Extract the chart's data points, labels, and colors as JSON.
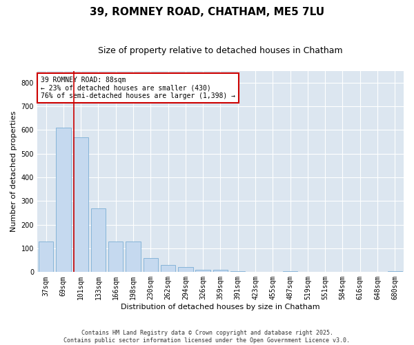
{
  "title": "39, ROMNEY ROAD, CHATHAM, ME5 7LU",
  "subtitle": "Size of property relative to detached houses in Chatham",
  "xlabel": "Distribution of detached houses by size in Chatham",
  "ylabel": "Number of detached properties",
  "categories": [
    "37sqm",
    "69sqm",
    "101sqm",
    "133sqm",
    "166sqm",
    "198sqm",
    "230sqm",
    "262sqm",
    "294sqm",
    "326sqm",
    "359sqm",
    "391sqm",
    "423sqm",
    "455sqm",
    "487sqm",
    "519sqm",
    "551sqm",
    "584sqm",
    "616sqm",
    "648sqm",
    "680sqm"
  ],
  "values": [
    130,
    610,
    570,
    270,
    130,
    130,
    60,
    30,
    20,
    10,
    10,
    5,
    0,
    0,
    5,
    0,
    0,
    0,
    0,
    0,
    5
  ],
  "bar_color": "#c5d9ef",
  "bar_edge_color": "#7aadd4",
  "plot_bg_color": "#dce6f0",
  "fig_bg_color": "#ffffff",
  "grid_color": "#ffffff",
  "vline_color": "#cc0000",
  "annotation_text": "39 ROMNEY ROAD: 88sqm\n← 23% of detached houses are smaller (430)\n76% of semi-detached houses are larger (1,398) →",
  "annotation_box_color": "#ffffff",
  "annotation_border_color": "#cc0000",
  "ylim": [
    0,
    850
  ],
  "yticks": [
    0,
    100,
    200,
    300,
    400,
    500,
    600,
    700,
    800
  ],
  "footer1": "Contains HM Land Registry data © Crown copyright and database right 2025.",
  "footer2": "Contains public sector information licensed under the Open Government Licence v3.0.",
  "title_fontsize": 11,
  "subtitle_fontsize": 9,
  "tick_fontsize": 7,
  "label_fontsize": 8,
  "annotation_fontsize": 7,
  "footer_fontsize": 6
}
